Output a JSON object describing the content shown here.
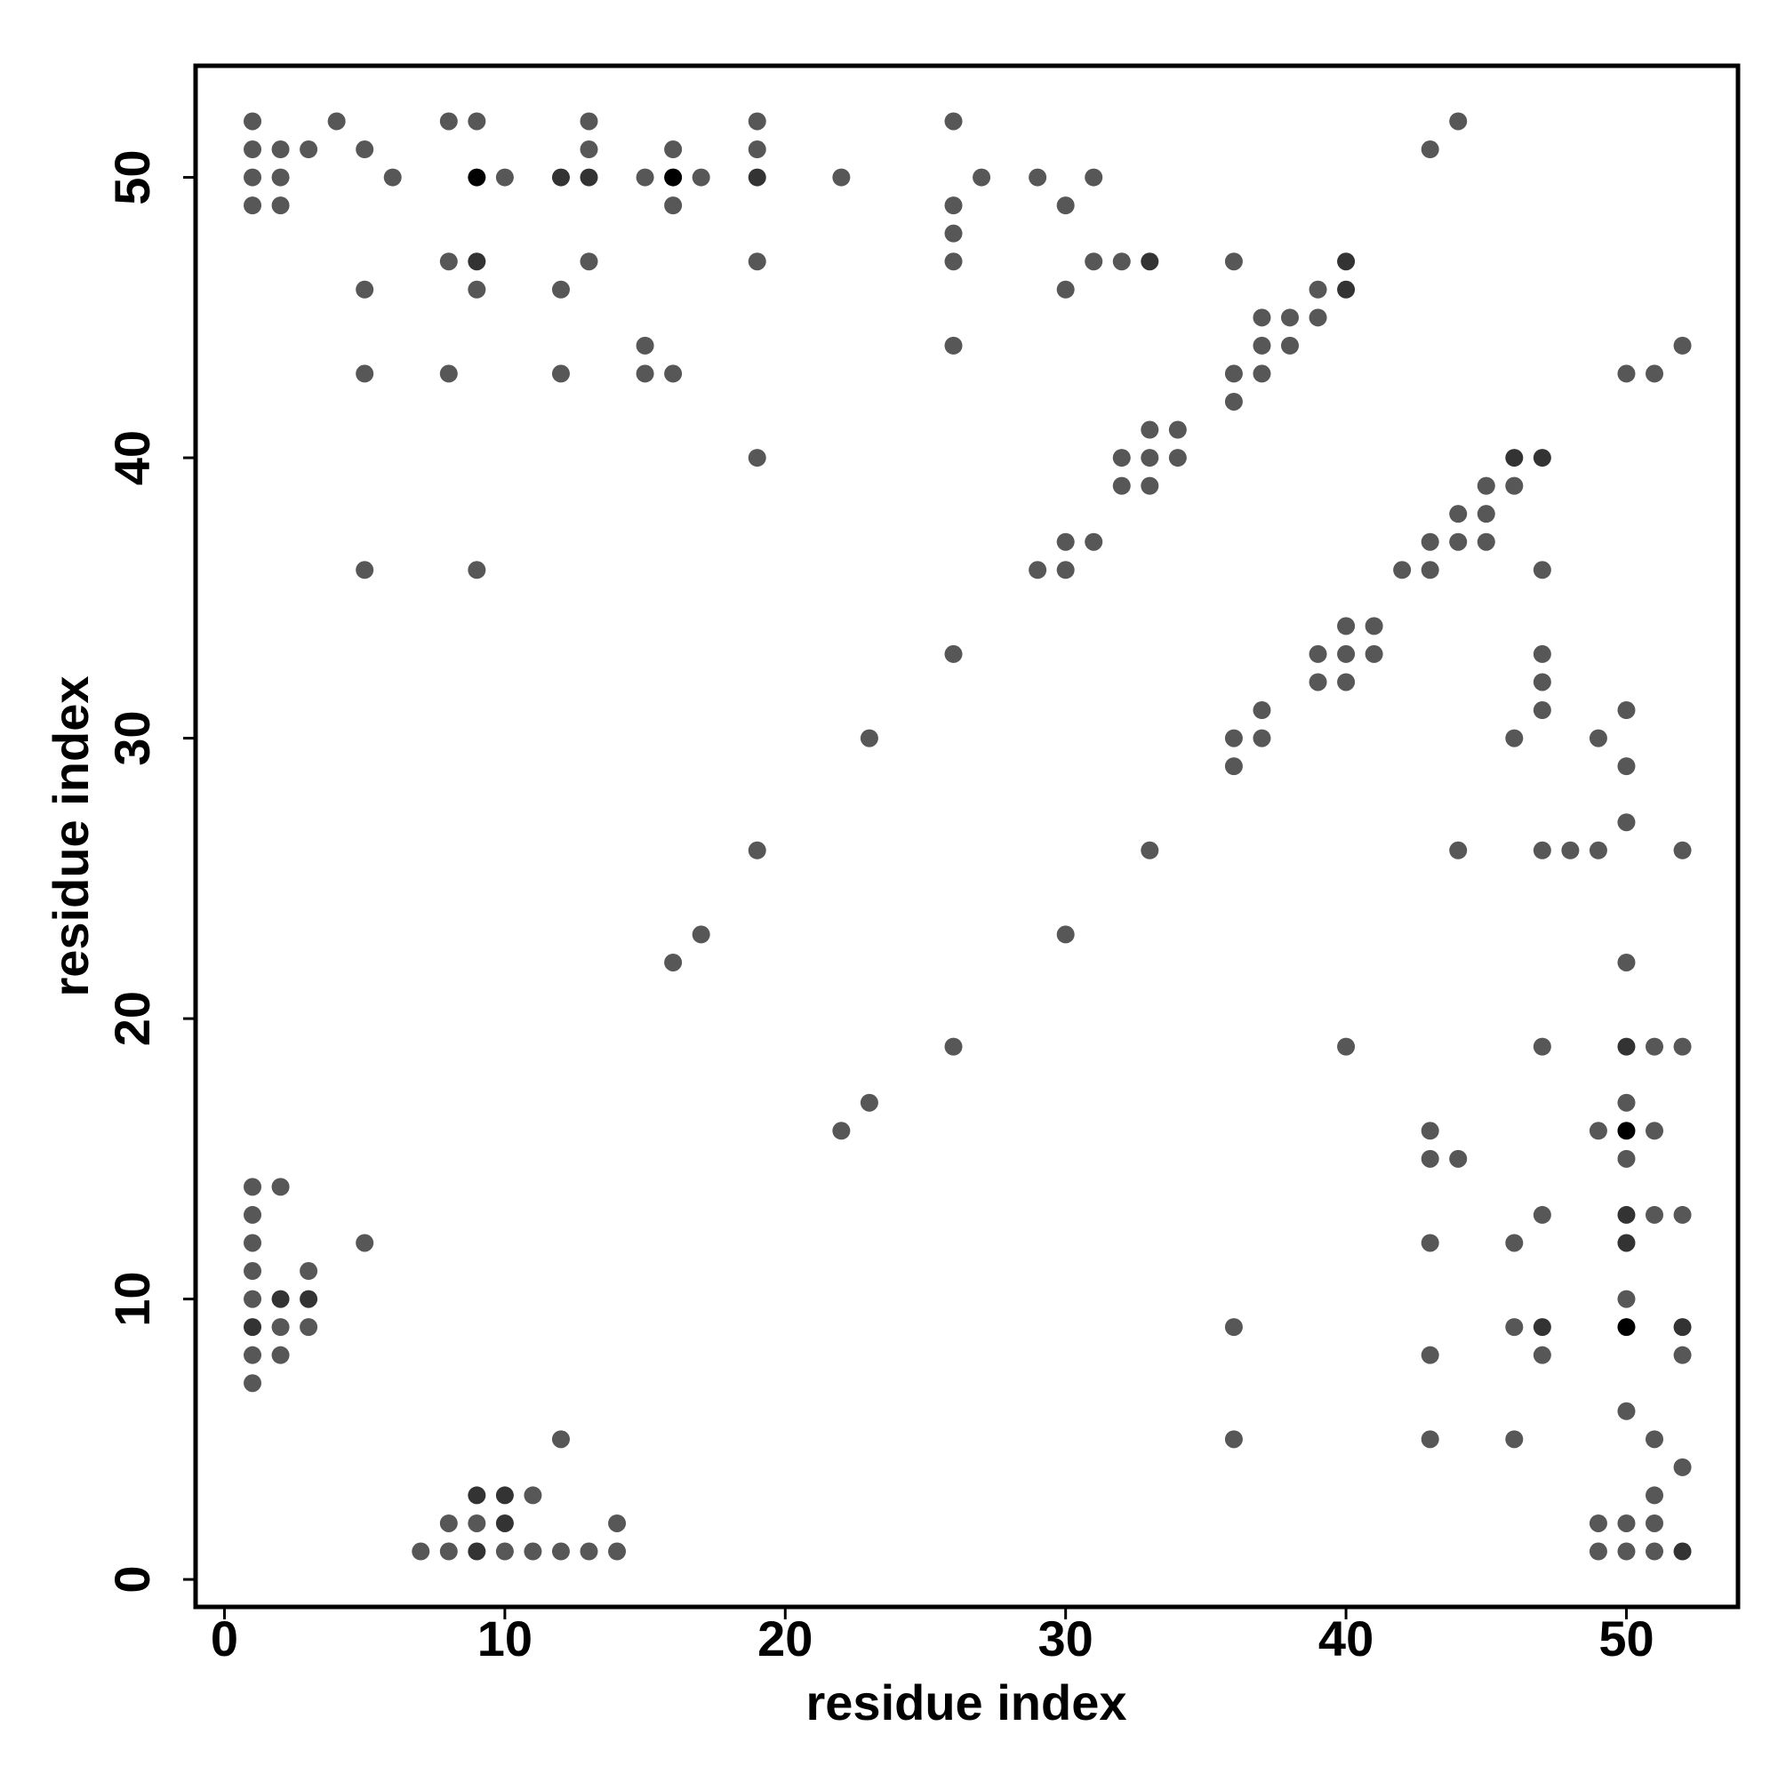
{
  "chart_data": {
    "type": "scatter",
    "x_label": "residue index",
    "y_label": "residue index",
    "xlim": [
      -1.03,
      53.98
    ],
    "ylim": [
      -0.98,
      53.98
    ],
    "xticks": [
      0,
      10,
      20,
      30,
      40,
      50
    ],
    "yticks": [
      0,
      10,
      20,
      30,
      40,
      50
    ],
    "x": [
      1,
      4,
      8,
      9,
      13,
      19,
      26,
      44,
      1,
      2,
      3,
      5,
      13,
      16,
      19,
      43,
      1,
      2,
      6,
      9,
      10,
      12,
      13,
      15,
      16,
      17,
      19,
      22,
      27,
      29,
      31,
      1,
      2,
      16,
      26,
      30,
      26,
      8,
      9,
      13,
      19,
      26,
      31,
      32,
      33,
      36,
      40,
      5,
      9,
      12,
      30,
      39,
      40,
      37,
      38,
      39,
      15,
      26,
      37,
      38,
      52,
      5,
      8,
      12,
      15,
      16,
      36,
      37,
      50,
      51,
      36,
      33,
      34,
      19,
      32,
      33,
      34,
      46,
      47,
      32,
      33,
      45,
      46,
      44,
      45,
      30,
      31,
      43,
      44,
      45,
      5,
      9,
      29,
      30,
      42,
      43,
      47,
      40,
      41,
      26,
      39,
      40,
      41,
      47,
      39,
      40,
      47,
      37,
      47,
      50,
      23,
      36,
      37,
      46,
      49,
      36,
      50,
      50,
      19,
      33,
      44,
      47,
      48,
      49,
      52,
      17,
      30,
      16,
      50,
      26,
      40,
      47,
      50,
      51,
      52,
      23,
      50,
      22,
      43,
      49,
      50,
      51,
      43,
      44,
      50,
      1,
      2,
      1,
      47,
      50,
      51,
      52,
      1,
      5,
      43,
      46,
      50,
      1,
      3,
      1,
      2,
      3,
      50,
      1,
      2,
      3,
      36,
      46,
      47,
      50,
      52,
      1,
      2,
      43,
      47,
      52,
      1,
      50,
      12,
      36,
      43,
      46,
      51,
      52,
      9,
      10,
      11,
      51,
      8,
      9,
      10,
      14,
      49,
      50,
      51,
      7,
      8,
      9,
      10,
      11,
      12,
      13,
      14,
      49,
      50,
      51,
      52
    ],
    "values": [
      52,
      52,
      52,
      52,
      52,
      52,
      52,
      52,
      51,
      51,
      51,
      51,
      51,
      51,
      51,
      51,
      50,
      50,
      50,
      50,
      50,
      50,
      50,
      50,
      50,
      50,
      50,
      50,
      50,
      50,
      50,
      49,
      49,
      49,
      49,
      49,
      48,
      47,
      47,
      47,
      47,
      47,
      47,
      47,
      47,
      47,
      47,
      46,
      46,
      46,
      46,
      46,
      46,
      45,
      45,
      45,
      44,
      44,
      44,
      44,
      44,
      43,
      43,
      43,
      43,
      43,
      43,
      43,
      43,
      43,
      42,
      41,
      41,
      40,
      40,
      40,
      40,
      40,
      40,
      39,
      39,
      39,
      39,
      38,
      38,
      37,
      37,
      37,
      37,
      37,
      36,
      36,
      36,
      36,
      36,
      36,
      36,
      34,
      34,
      33,
      33,
      33,
      33,
      33,
      32,
      32,
      32,
      31,
      31,
      31,
      30,
      30,
      30,
      30,
      30,
      29,
      29,
      27,
      26,
      26,
      26,
      26,
      26,
      26,
      26,
      23,
      23,
      22,
      22,
      19,
      19,
      19,
      19,
      19,
      19,
      17,
      17,
      16,
      16,
      16,
      16,
      16,
      15,
      15,
      15,
      14,
      14,
      13,
      13,
      13,
      13,
      13,
      12,
      12,
      12,
      12,
      12,
      11,
      11,
      10,
      10,
      10,
      10,
      9,
      9,
      9,
      9,
      9,
      9,
      9,
      9,
      8,
      8,
      8,
      8,
      8,
      7,
      6,
      5,
      5,
      5,
      5,
      5,
      4,
      3,
      3,
      3,
      3,
      2,
      2,
      2,
      2,
      2,
      2,
      2,
      1,
      1,
      1,
      1,
      1,
      1,
      1,
      1,
      1,
      1,
      1,
      1
    ],
    "colors": [
      "#575757",
      "#575757",
      "#575757",
      "#575757",
      "#575757",
      "#575757",
      "#575757",
      "#575757",
      "#575757",
      "#575757",
      "#575757",
      "#575757",
      "#575757",
      "#575757",
      "#575757",
      "#575757",
      "#575757",
      "#575757",
      "#575757",
      "#000000",
      "#575757",
      "#333333",
      "#333333",
      "#575757",
      "#000000",
      "#575757",
      "#333333",
      "#575757",
      "#575757",
      "#575757",
      "#575757",
      "#575757",
      "#575757",
      "#575757",
      "#575757",
      "#575757",
      "#575757",
      "#575757",
      "#333333",
      "#575757",
      "#575757",
      "#575757",
      "#575757",
      "#575757",
      "#333333",
      "#575757",
      "#333333",
      "#575757",
      "#575757",
      "#575757",
      "#575757",
      "#575757",
      "#333333",
      "#575757",
      "#575757",
      "#575757",
      "#575757",
      "#575757",
      "#575757",
      "#575757",
      "#575757",
      "#575757",
      "#575757",
      "#575757",
      "#575757",
      "#575757",
      "#575757",
      "#575757",
      "#575757",
      "#575757",
      "#575757",
      "#575757",
      "#575757",
      "#575757",
      "#575757",
      "#575757",
      "#575757",
      "#333333",
      "#333333",
      "#575757",
      "#575757",
      "#575757",
      "#575757",
      "#575757",
      "#575757",
      "#575757",
      "#575757",
      "#575757",
      "#575757",
      "#575757",
      "#575757",
      "#575757",
      "#575757",
      "#575757",
      "#575757",
      "#575757",
      "#575757",
      "#575757",
      "#575757",
      "#575757",
      "#575757",
      "#575757",
      "#575757",
      "#575757",
      "#575757",
      "#575757",
      "#575757",
      "#575757",
      "#575757",
      "#575757",
      "#575757",
      "#575757",
      "#575757",
      "#575757",
      "#575757",
      "#575757",
      "#575757",
      "#575757",
      "#575757",
      "#575757",
      "#575757",
      "#575757",
      "#575757",
      "#575757",
      "#575757",
      "#575757",
      "#575757",
      "#575757",
      "#575757",
      "#575757",
      "#575757",
      "#575757",
      "#333333",
      "#575757",
      "#575757",
      "#575757",
      "#575757",
      "#575757",
      "#575757",
      "#575757",
      "#000000",
      "#575757",
      "#575757",
      "#575757",
      "#575757",
      "#575757",
      "#575757",
      "#575757",
      "#575757",
      "#333333",
      "#575757",
      "#575757",
      "#575757",
      "#575757",
      "#575757",
      "#575757",
      "#333333",
      "#575757",
      "#575757",
      "#575757",
      "#333333",
      "#333333",
      "#575757",
      "#333333",
      "#575757",
      "#575757",
      "#575757",
      "#575757",
      "#333333",
      "#000000",
      "#333333",
      "#575757",
      "#575757",
      "#575757",
      "#575757",
      "#575757",
      "#575757",
      "#575757",
      "#575757",
      "#575757",
      "#575757",
      "#575757",
      "#575757",
      "#575757",
      "#333333",
      "#333333",
      "#575757",
      "#575757",
      "#575757",
      "#575757",
      "#333333",
      "#575757",
      "#575757",
      "#575757",
      "#575757",
      "#575757",
      "#575757",
      "#333333",
      "#575757",
      "#575757",
      "#575757",
      "#575757",
      "#575757",
      "#575757",
      "#575757",
      "#575757",
      "#333333"
    ]
  }
}
